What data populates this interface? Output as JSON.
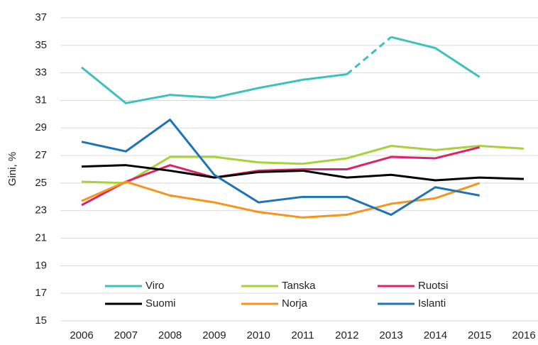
{
  "chart_data": {
    "type": "line",
    "y_label": "Gini, %",
    "categories": [
      2006,
      2007,
      2008,
      2009,
      2010,
      2011,
      2012,
      2013,
      2014,
      2015,
      2016
    ],
    "series": [
      {
        "name": "Viro",
        "color": "#3cc1bd",
        "values": [
          33.4,
          30.8,
          31.4,
          31.2,
          31.9,
          32.5,
          32.9,
          35.6,
          34.8,
          32.7,
          null
        ],
        "dashed_segments": [
          [
            6,
            7
          ]
        ]
      },
      {
        "name": "Tanska",
        "color": "#a8d13a",
        "values": [
          25.1,
          25.0,
          26.9,
          26.9,
          26.5,
          26.4,
          26.8,
          27.7,
          27.4,
          27.7,
          27.5
        ]
      },
      {
        "name": "Ruotsi",
        "color": "#e0206a",
        "values": [
          23.4,
          25.1,
          26.3,
          25.4,
          25.9,
          26.0,
          26.0,
          26.9,
          26.8,
          27.6,
          null
        ]
      },
      {
        "name": "Suomi",
        "color": "#000000",
        "values": [
          26.2,
          26.3,
          25.9,
          25.4,
          25.8,
          25.9,
          25.4,
          25.6,
          25.2,
          25.4,
          25.3
        ]
      },
      {
        "name": "Norja",
        "color": "#f7941d",
        "values": [
          23.7,
          25.1,
          24.1,
          23.6,
          22.9,
          22.5,
          22.7,
          23.5,
          23.9,
          25.0,
          null
        ]
      },
      {
        "name": "Islanti",
        "color": "#1f74b5",
        "values": [
          28.0,
          27.3,
          29.6,
          25.6,
          23.6,
          24.0,
          24.0,
          22.7,
          24.7,
          24.1,
          null
        ]
      }
    ],
    "ylim": [
      15,
      37
    ],
    "yticks": [
      15,
      17,
      19,
      21,
      23,
      25,
      27,
      29,
      31,
      33,
      35,
      37
    ],
    "grid": true,
    "legend": "bottom"
  }
}
